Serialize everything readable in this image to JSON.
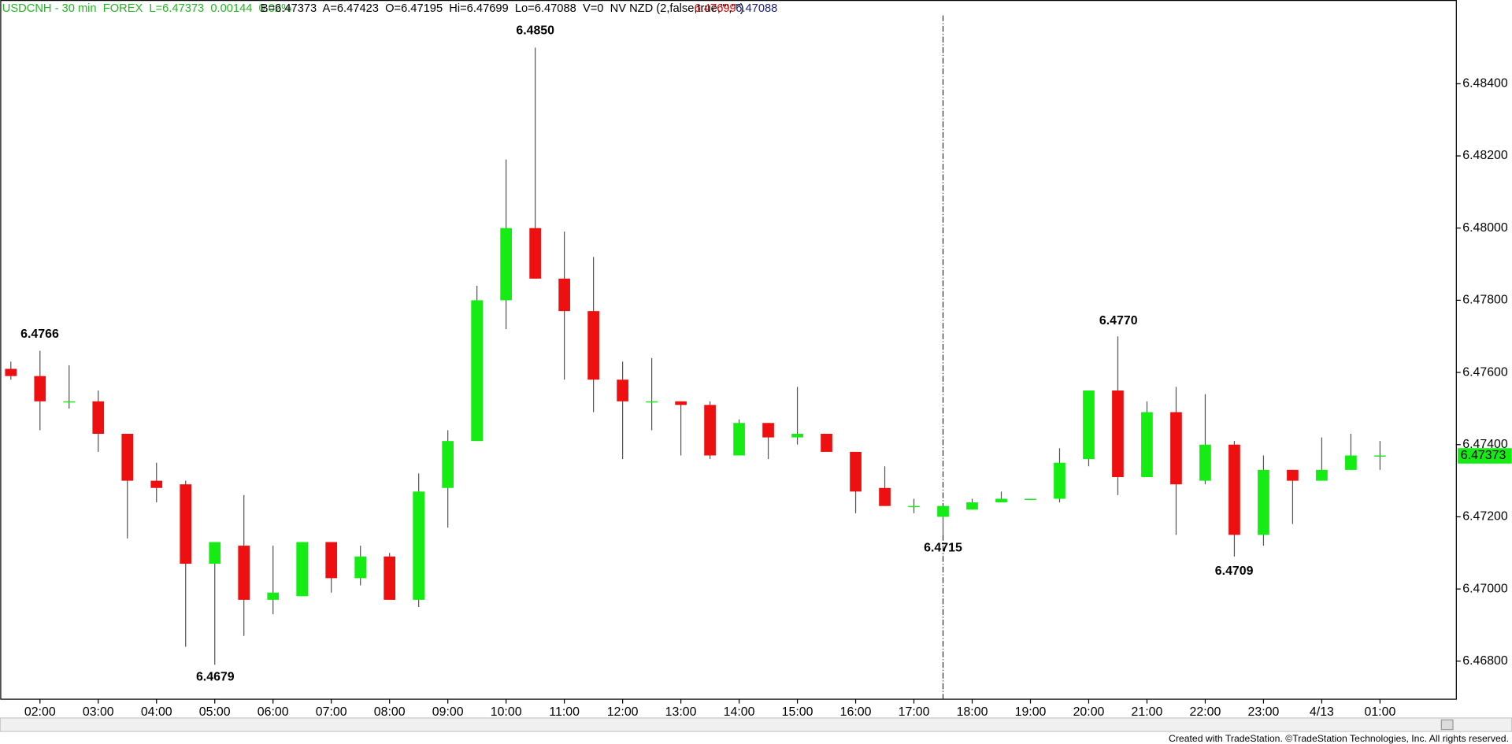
{
  "chart_data": {
    "type": "candlestick",
    "header": {
      "symbol_info": "USDCNH - 30 min  FOREX  L=6.47373  0.00144  0.02%",
      "quote_info": "B=6.47373  A=6.47423  O=6.47195  Hi=6.47699  Lo=6.47088  V=0  NV NZD (2,false,true,\"\",\"\")",
      "indicator_high": "6.47699",
      "indicator_low": "6.47088"
    },
    "last_price_label": "6.47373",
    "footer": "Created with TradeStation. ©TradeStation Technologies, Inc. All rights reserved.",
    "annotations": [
      "6.4766",
      "6.4679",
      "6.4850",
      "6.4715",
      "6.4770",
      "6.4709"
    ],
    "categories": [
      null,
      "02:00",
      null,
      "03:00",
      null,
      "04:00",
      null,
      "05:00",
      null,
      "06:00",
      null,
      "07:00",
      null,
      "08:00",
      null,
      "09:00",
      null,
      "10:00",
      null,
      "11:00",
      null,
      "12:00",
      null,
      "13:00",
      null,
      "14:00",
      null,
      "15:00",
      null,
      "16:00",
      null,
      "17:00",
      null,
      "18:00",
      null,
      "19:00",
      null,
      "20:00",
      null,
      "21:00",
      null,
      "22:00",
      null,
      "23:00",
      null,
      "4/13",
      null,
      "01:00"
    ],
    "open": [
      6.4761,
      6.4759,
      6.4752,
      6.4752,
      6.4743,
      6.473,
      6.4729,
      6.4707,
      6.4712,
      6.4697,
      6.4698,
      6.4713,
      6.4703,
      6.4709,
      6.4697,
      6.4728,
      6.4741,
      6.478,
      6.48,
      6.4786,
      6.4777,
      6.4758,
      6.4752,
      6.4752,
      6.4751,
      6.4737,
      6.4746,
      6.4742,
      6.4743,
      6.4738,
      6.4728,
      6.4723,
      6.472,
      6.4722,
      6.4724,
      6.4725,
      6.4725,
      6.4736,
      6.4755,
      6.4731,
      6.4749,
      6.473,
      6.474,
      6.4715,
      6.4733,
      6.473,
      6.4733,
      6.4737
    ],
    "high": [
      6.4763,
      6.4766,
      6.4762,
      6.4755,
      6.4743,
      6.4735,
      6.473,
      6.4713,
      6.4726,
      6.4712,
      6.4713,
      6.4713,
      6.4712,
      6.471,
      6.4732,
      6.4744,
      6.4784,
      6.4819,
      6.485,
      6.4799,
      6.4792,
      6.4763,
      6.4764,
      6.4752,
      6.4752,
      6.4747,
      6.4746,
      6.4756,
      6.4743,
      6.4738,
      6.4734,
      6.4725,
      6.4723,
      6.4725,
      6.4727,
      6.4725,
      6.4739,
      6.4755,
      6.477,
      6.4752,
      6.4756,
      6.4754,
      6.4741,
      6.4737,
      6.4733,
      6.4742,
      6.4743,
      6.4741
    ],
    "low": [
      6.4758,
      6.4744,
      6.475,
      6.4738,
      6.4714,
      6.4724,
      6.4684,
      6.4679,
      6.4687,
      6.4693,
      6.4698,
      6.4699,
      6.4701,
      6.4697,
      6.4695,
      6.4717,
      6.4741,
      6.4772,
      6.4786,
      6.4758,
      6.4749,
      6.4736,
      6.4744,
      6.4737,
      6.4736,
      6.4737,
      6.4736,
      6.474,
      6.4738,
      6.4721,
      6.4723,
      6.4721,
      6.4715,
      6.4722,
      6.4724,
      6.4725,
      6.4724,
      6.4734,
      6.4726,
      6.4731,
      6.4715,
      6.4729,
      6.4709,
      6.4712,
      6.4718,
      6.473,
      6.4733,
      6.4733
    ],
    "close": [
      6.4759,
      6.4752,
      6.4752,
      6.4743,
      6.473,
      6.4728,
      6.4707,
      6.4713,
      6.4697,
      6.4699,
      6.4713,
      6.4703,
      6.4709,
      6.4697,
      6.4727,
      6.4741,
      6.478,
      6.48,
      6.4786,
      6.4777,
      6.4758,
      6.4752,
      6.4752,
      6.4751,
      6.4737,
      6.4746,
      6.4742,
      6.4743,
      6.4738,
      6.4727,
      6.4723,
      6.4723,
      6.4723,
      6.4724,
      6.4725,
      6.4725,
      6.4735,
      6.4755,
      6.4731,
      6.4749,
      6.4729,
      6.474,
      6.4715,
      6.4733,
      6.473,
      6.4733,
      6.4737,
      6.4737
    ],
    "up_color": "#14ec14",
    "down_color": "#ee1010",
    "ylim": [
      6.46696,
      6.48632
    ],
    "yticks": [
      {
        "value": 6.468,
        "label": "6.46800"
      },
      {
        "value": 6.47,
        "label": "6.47000"
      },
      {
        "value": 6.472,
        "label": "6.47200"
      },
      {
        "value": 6.474,
        "label": "6.47400"
      },
      {
        "value": 6.476,
        "label": "6.47600"
      },
      {
        "value": 6.478,
        "label": "6.47800"
      },
      {
        "value": 6.48,
        "label": "6.48000"
      },
      {
        "value": 6.482,
        "label": "6.48200"
      },
      {
        "value": 6.484,
        "label": "6.48400"
      }
    ],
    "grid": false
  }
}
